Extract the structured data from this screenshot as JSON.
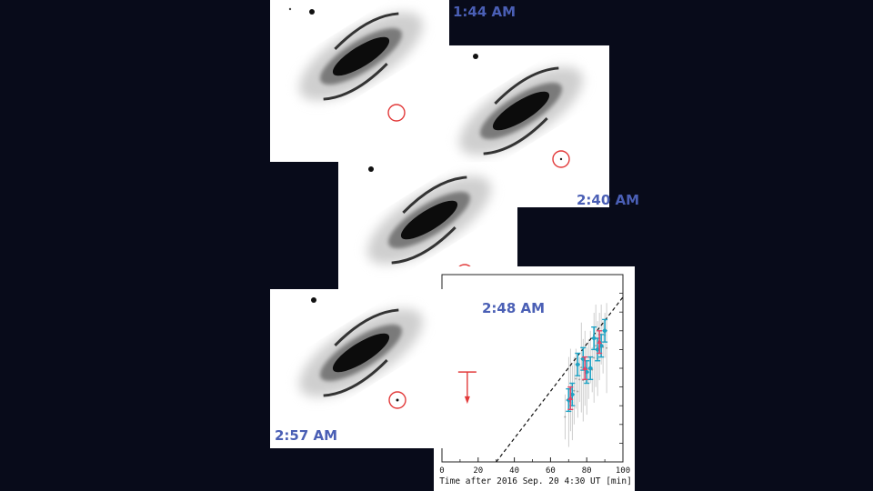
{
  "frames": [
    {
      "id": "frame-1",
      "time_label": "1:44 AM"
    },
    {
      "id": "frame-2",
      "time_label": "2:40 AM"
    },
    {
      "id": "frame-3",
      "time_label": "2:48 AM"
    },
    {
      "id": "frame-4",
      "time_label": "2:57 AM"
    }
  ],
  "colors": {
    "background": "#080b1a",
    "time_label": "#4a5fb5",
    "marker_circle": "#e23a3a",
    "data_points": "#1fa3c4",
    "highlight_points": "#e0486a",
    "upper_limit": "#e23a3a"
  },
  "chart_data": {
    "type": "scatter",
    "xlabel": "Time after 2016 Sep. 20 4:30 UT [min]",
    "xlim": [
      0,
      100
    ],
    "x_ticks": [
      "0",
      "20",
      "40",
      "60",
      "80",
      "100"
    ],
    "upper_limit": {
      "x": 14
    },
    "fit_line": {
      "x_start": 30,
      "x_end": 100
    },
    "series": [
      {
        "points": [
          {
            "x": 70,
            "y": 0.33
          },
          {
            "x": 72,
            "y": 0.36
          },
          {
            "x": 75,
            "y": 0.52
          },
          {
            "x": 78,
            "y": 0.55
          },
          {
            "x": 80,
            "y": 0.48
          },
          {
            "x": 82,
            "y": 0.5
          },
          {
            "x": 84,
            "y": 0.66
          },
          {
            "x": 86,
            "y": 0.6
          },
          {
            "x": 88,
            "y": 0.62
          },
          {
            "x": 90,
            "y": 0.7
          }
        ]
      },
      {
        "points": [
          {
            "x": 71,
            "y": 0.34
          },
          {
            "x": 79,
            "y": 0.5
          },
          {
            "x": 87,
            "y": 0.64
          }
        ]
      }
    ]
  }
}
